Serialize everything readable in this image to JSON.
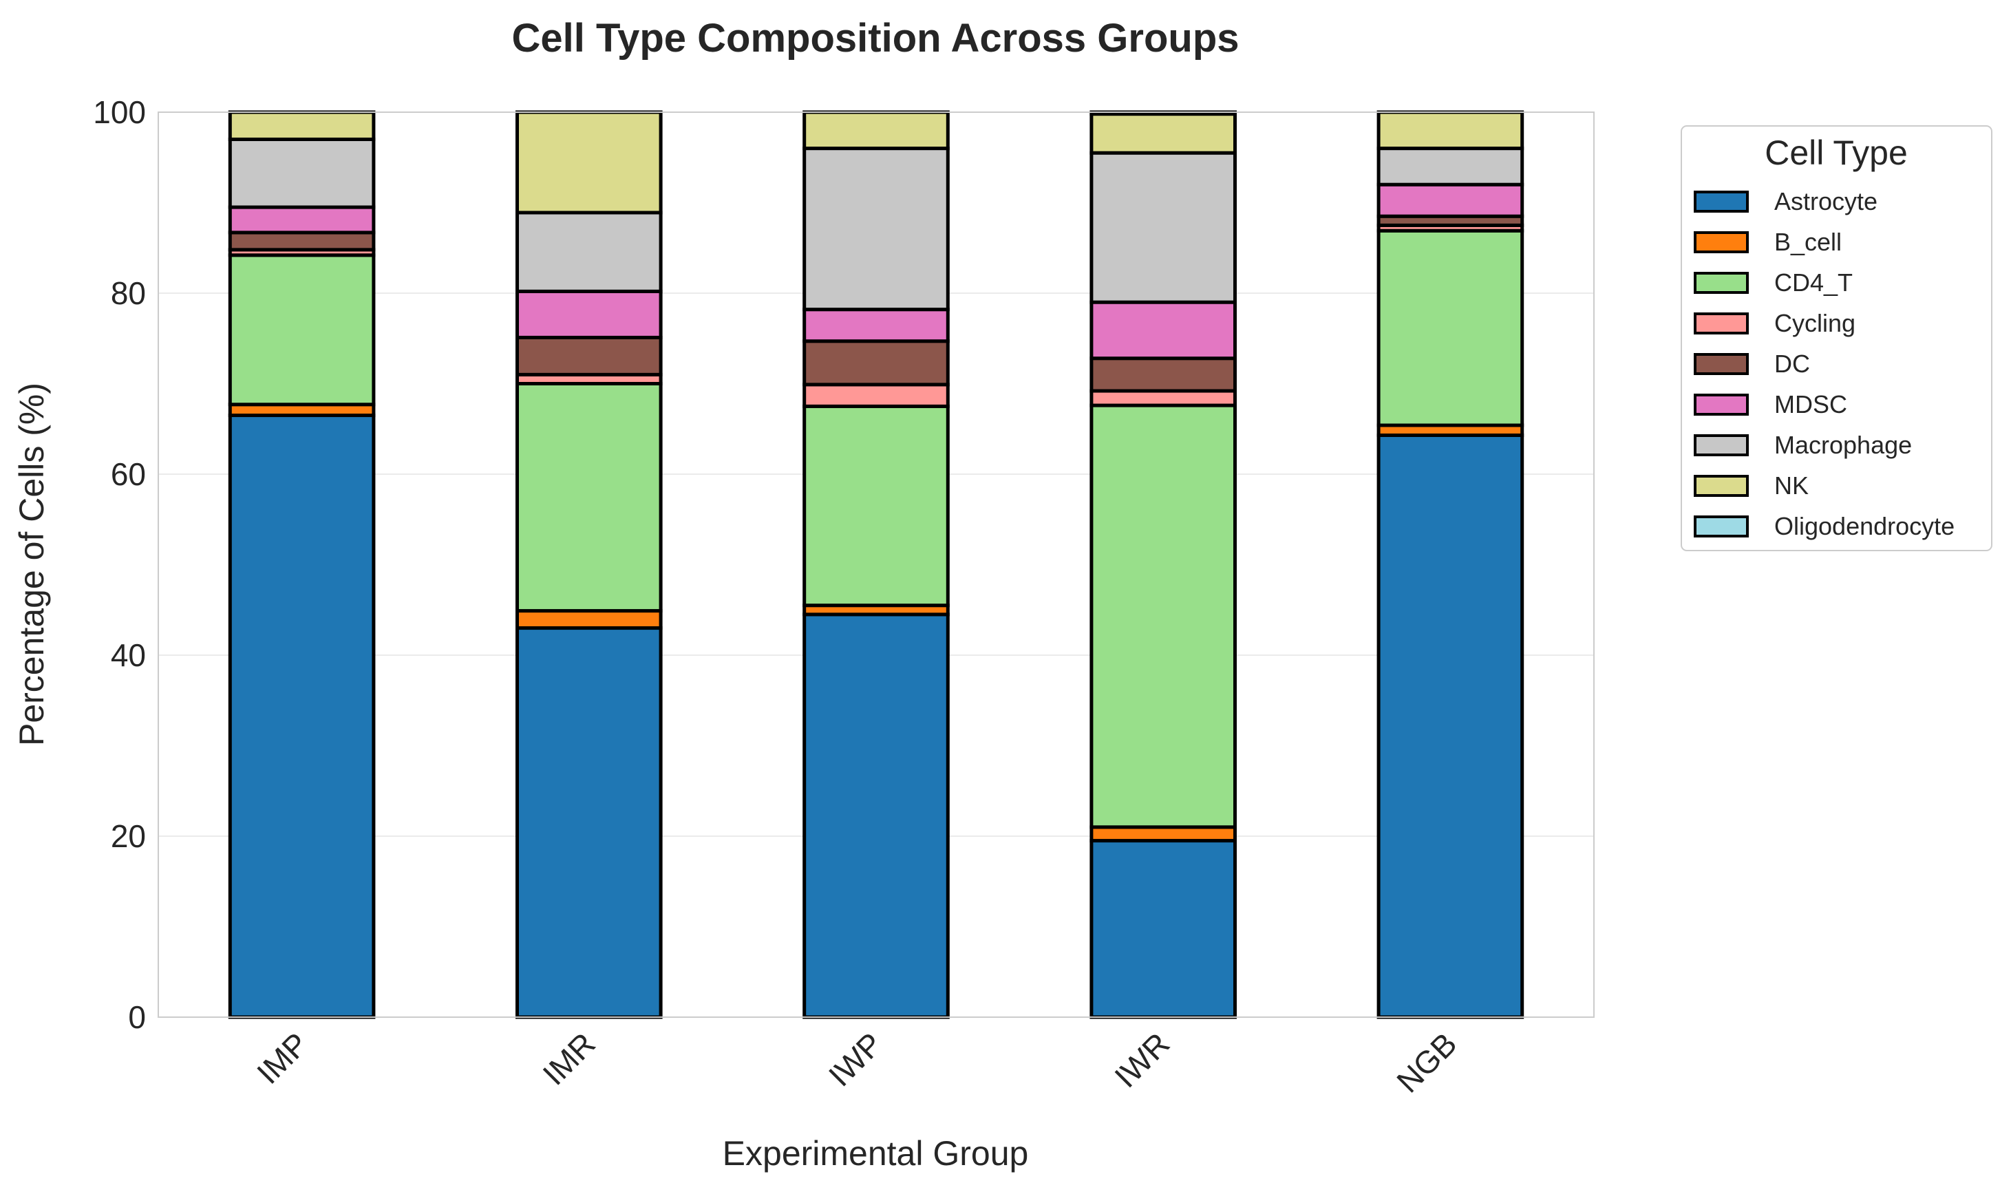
{
  "chart_data": {
    "type": "bar",
    "stacked": true,
    "title": "Cell Type Composition Across Groups",
    "xlabel": "Experimental Group",
    "ylabel": "Percentage of Cells (%)",
    "ylim": [
      0,
      100
    ],
    "yticks": [
      "0",
      "20",
      "40",
      "60",
      "80",
      "100"
    ],
    "grid": "y",
    "legend_position": "outside-right",
    "legend_title": "Cell Type",
    "categories": [
      "IMP",
      "IMR",
      "IWP",
      "IWR",
      "NGB"
    ],
    "series": [
      {
        "name": "Astrocyte",
        "color": "#1f77b4",
        "values": [
          66.5,
          43.0,
          44.5,
          19.5,
          64.3
        ]
      },
      {
        "name": "B_cell",
        "color": "#ff7f0e",
        "values": [
          1.2,
          1.9,
          1.0,
          1.5,
          1.1
        ]
      },
      {
        "name": "CD4_T",
        "color": "#98df8a",
        "values": [
          16.5,
          25.1,
          22.0,
          46.6,
          21.5
        ]
      },
      {
        "name": "Cycling",
        "color": "#ff9896",
        "values": [
          0.6,
          1.0,
          2.4,
          1.6,
          0.6
        ]
      },
      {
        "name": "DC",
        "color": "#8c564b",
        "values": [
          1.9,
          4.1,
          4.8,
          3.6,
          1.0
        ]
      },
      {
        "name": "MDSC",
        "color": "#e377c2",
        "values": [
          2.8,
          5.1,
          3.5,
          6.2,
          3.5
        ]
      },
      {
        "name": "Macrophage",
        "color": "#c7c7c7",
        "values": [
          7.5,
          8.7,
          17.8,
          16.5,
          4.0
        ]
      },
      {
        "name": "NK",
        "color": "#dbdb8d",
        "values": [
          3.0,
          11.1,
          4.0,
          4.3,
          4.0
        ]
      },
      {
        "name": "Oligodendrocyte",
        "color": "#9edae5",
        "values": [
          0.0,
          0.0,
          0.0,
          0.2,
          0.0
        ]
      }
    ]
  }
}
